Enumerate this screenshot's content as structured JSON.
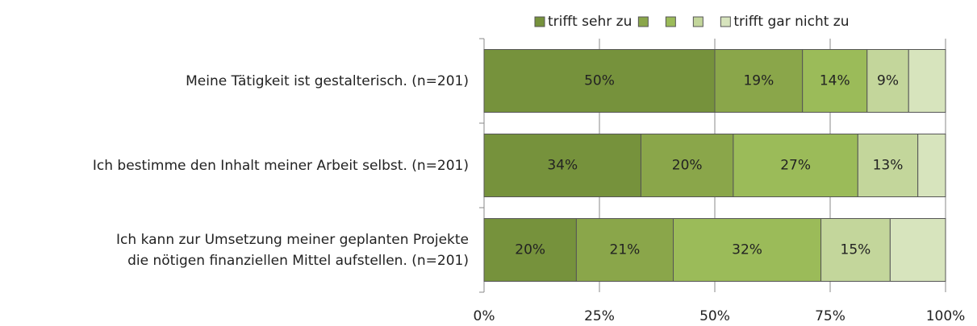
{
  "chart_data": {
    "type": "stacked_barh",
    "categories": [
      "Meine Tätigkeit ist gestalterisch. (n=201)",
      "Ich bestimme den Inhalt meiner Arbeit selbst. (n=201)",
      "Ich kann zur Umsetzung meiner geplanten Projekte\ndie nötigen finanziellen Mittel aufstellen. (n=201)"
    ],
    "series": [
      {
        "name": "trifft sehr zu",
        "color": "#76923c",
        "label_color": "#ffffff",
        "values": [
          50,
          34,
          20
        ],
        "value_labels": [
          "50%",
          "34%",
          "20%"
        ]
      },
      {
        "name": null,
        "color": "#8aa64a",
        "label_color": "#222222",
        "values": [
          19,
          20,
          21
        ],
        "value_labels": [
          "19%",
          "20%",
          "21%"
        ]
      },
      {
        "name": null,
        "color": "#9bbb59",
        "label_color": "#222222",
        "values": [
          14,
          27,
          32
        ],
        "value_labels": [
          "14%",
          "27%",
          "32%"
        ]
      },
      {
        "name": null,
        "color": "#c3d69b",
        "label_color": "#222222",
        "values": [
          9,
          13,
          15
        ],
        "value_labels": [
          "9%",
          "13%",
          "15%"
        ]
      },
      {
        "name": "trifft gar nicht zu",
        "color": "#d7e4bd",
        "label_color": "#222222",
        "values": [
          8,
          6,
          12
        ],
        "value_labels": [
          null,
          null,
          null
        ]
      }
    ],
    "xlim": [
      0,
      100
    ],
    "xticks": [
      {
        "value": 0,
        "label": "0%"
      },
      {
        "value": 25,
        "label": "25%"
      },
      {
        "value": 50,
        "label": "50%"
      },
      {
        "value": 75,
        "label": "75%"
      },
      {
        "value": 100,
        "label": "100%"
      }
    ],
    "grid": true,
    "legend": "top"
  }
}
